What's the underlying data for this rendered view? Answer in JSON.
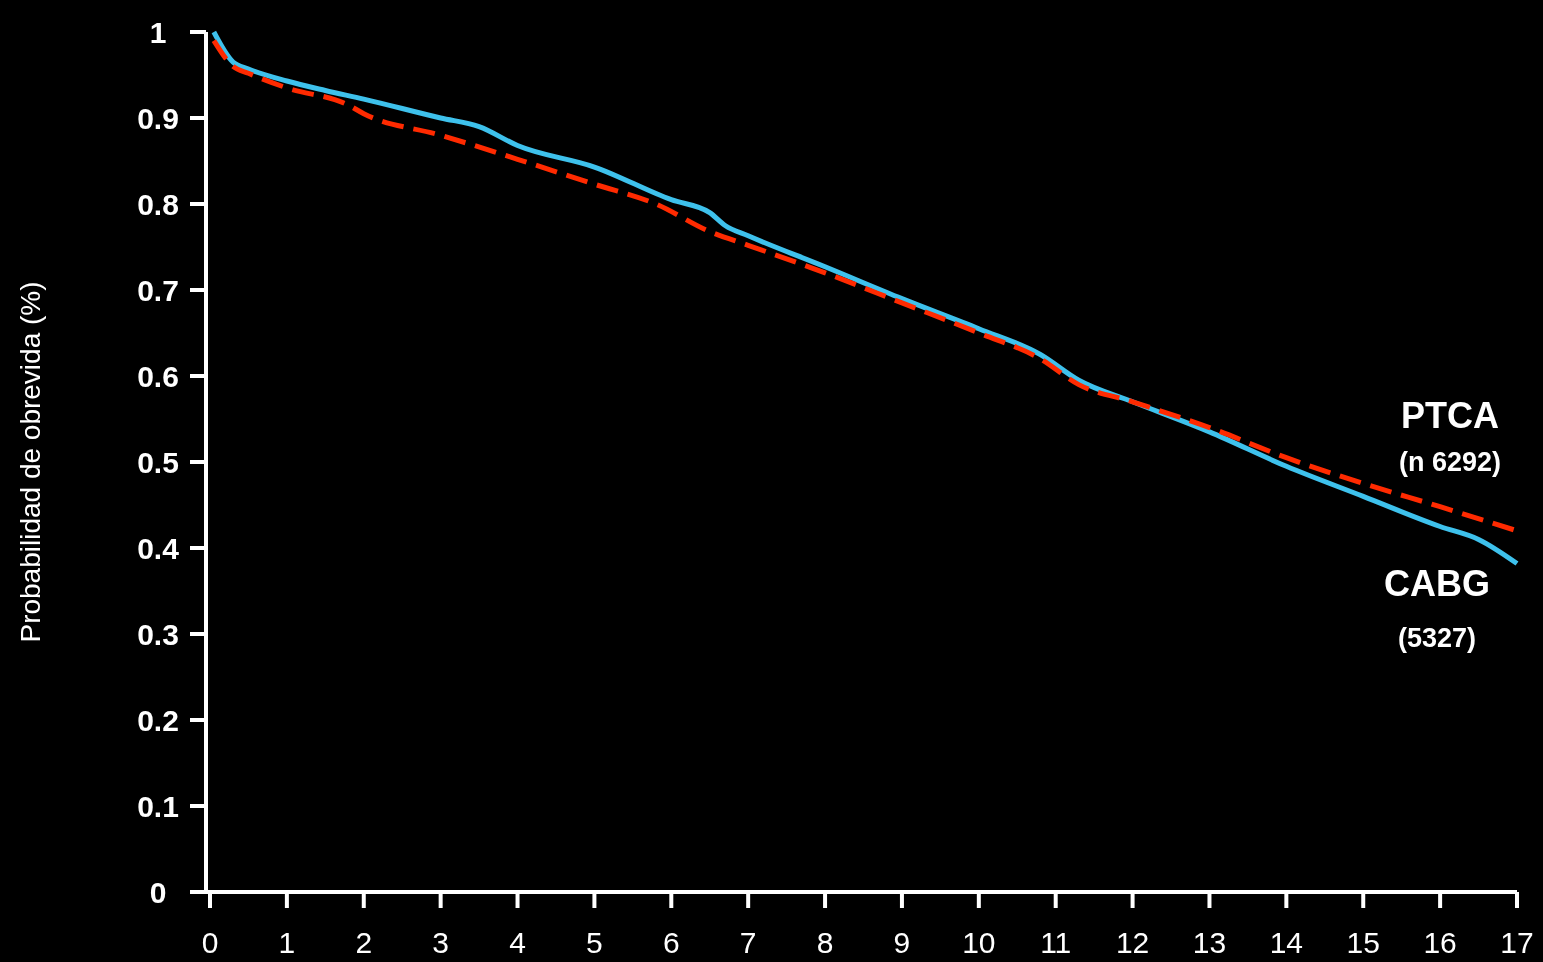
{
  "chart_data": {
    "type": "line",
    "ylabel": "Probabilidad de obrevida (%)",
    "xlim": [
      0,
      17
    ],
    "xticks": [
      0,
      1,
      2,
      3,
      4,
      5,
      6,
      7,
      8,
      9,
      10,
      11,
      12,
      13,
      14,
      15,
      16,
      17
    ],
    "ylim": [
      0,
      1
    ],
    "yticks": [
      0,
      0.1,
      0.2,
      0.3,
      0.4,
      0.5,
      0.6,
      0.7,
      0.8,
      0.9,
      1
    ],
    "grid": false,
    "marker": "none",
    "series": [
      {
        "name": "CABG",
        "color": "#3ec1ec",
        "line_style": "solid",
        "x": [
          0.05,
          0.3,
          0.5,
          1,
          1.5,
          2,
          3,
          3.5,
          4,
          5,
          6,
          6.5,
          6.7,
          7,
          8,
          9,
          10,
          10.8,
          11.3,
          12,
          13,
          14,
          15,
          16,
          16.5,
          17
        ],
        "values": [
          1.0,
          0.965,
          0.957,
          0.943,
          0.932,
          0.922,
          0.9,
          0.89,
          0.868,
          0.843,
          0.805,
          0.79,
          0.775,
          0.763,
          0.727,
          0.69,
          0.655,
          0.625,
          0.595,
          0.57,
          0.535,
          0.495,
          0.46,
          0.425,
          0.41,
          0.382
        ]
      },
      {
        "name": "PTCA",
        "color": "#ff2a00",
        "line_style": "dashed",
        "x": [
          0.05,
          0.3,
          0.5,
          1,
          1.8,
          2,
          3,
          4,
          5,
          5.8,
          6.5,
          7,
          8,
          9,
          10,
          10.8,
          11.3,
          12,
          13,
          14,
          15,
          16,
          17
        ],
        "values": [
          0.99,
          0.96,
          0.952,
          0.935,
          0.915,
          0.905,
          0.88,
          0.852,
          0.823,
          0.8,
          0.768,
          0.752,
          0.72,
          0.685,
          0.65,
          0.62,
          0.59,
          0.57,
          0.54,
          0.505,
          0.475,
          0.448,
          0.42
        ]
      }
    ],
    "annotations": [
      "(5327)",
      "(n 6292)"
    ]
  }
}
